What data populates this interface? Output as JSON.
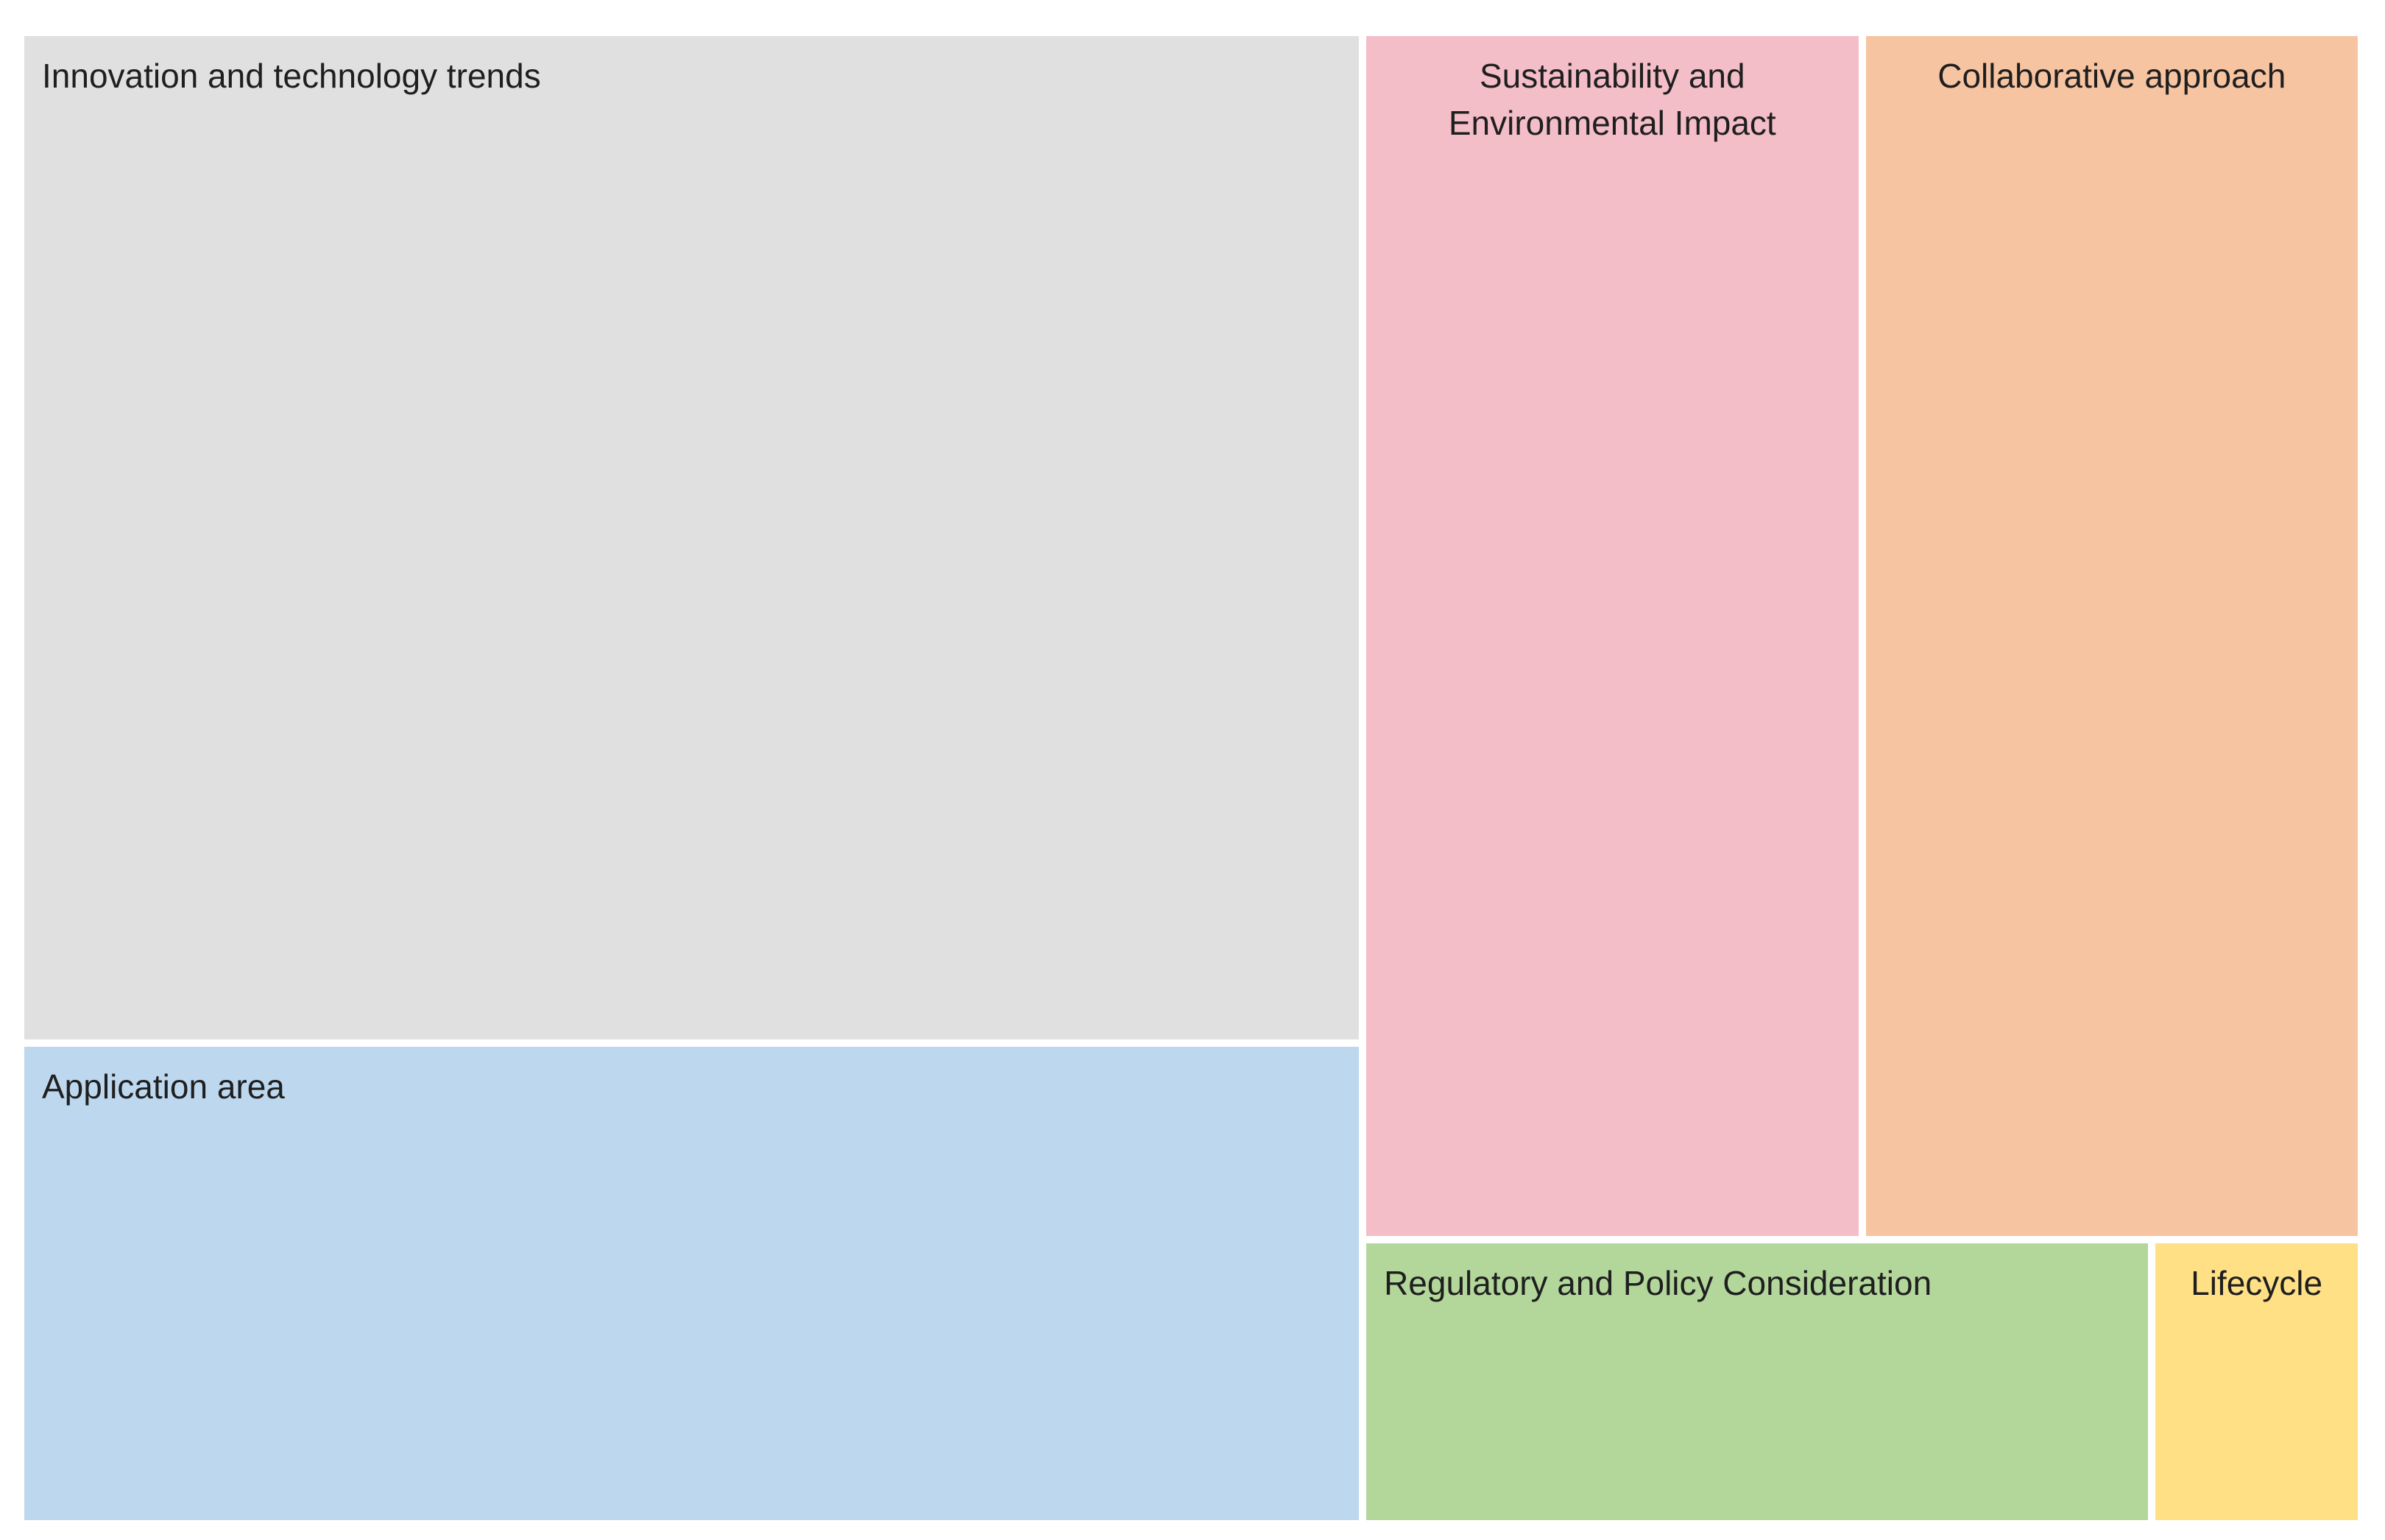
{
  "chart_data": {
    "type": "treemap",
    "title": "",
    "values_labeled": false,
    "tiles": [
      {
        "label": "Innovation and technology trends",
        "value": 38.7,
        "color": "#e0e0e0"
      },
      {
        "label": "Application area",
        "value": 18.4,
        "color": "#bdd7ee"
      },
      {
        "label": "Sustainability and\nEnvironmental Impact",
        "value": 17.2,
        "color": "#f4bec9"
      },
      {
        "label": "Collaborative approach",
        "value": 17.2,
        "color": "#f7c4a2"
      },
      {
        "label": "Regulatory and Policy Consideration",
        "value": 6.4,
        "color": "#b3d79b"
      },
      {
        "label": "Lifecycle",
        "value": 1.7,
        "color": "#ffe085"
      }
    ]
  }
}
